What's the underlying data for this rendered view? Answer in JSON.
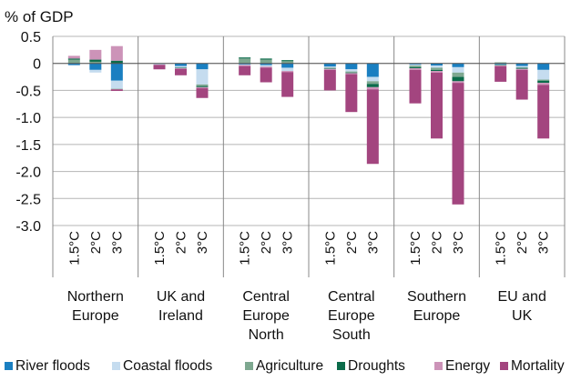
{
  "chart_data": {
    "type": "bar",
    "stacked": true,
    "ylabel": "% of GDP",
    "ylim": [
      -3.0,
      0.5
    ],
    "yticks": [
      0.5,
      0,
      -0.5,
      -1.0,
      -1.5,
      -2.0,
      -2.5,
      -3.0
    ],
    "ytick_labels": [
      "0.5",
      "0",
      "-0.5",
      "-1.0",
      "-1.5",
      "-2.0",
      "-2.5",
      "-3.0"
    ],
    "legend_position": "bottom",
    "groups": [
      {
        "label": [
          "Northern",
          "Europe"
        ]
      },
      {
        "label": [
          "UK and",
          "Ireland"
        ]
      },
      {
        "label": [
          "Central",
          "Europe",
          "North"
        ]
      },
      {
        "label": [
          "Central",
          "Europe",
          "South"
        ]
      },
      {
        "label": [
          "Southern",
          "Europe"
        ]
      },
      {
        "label": [
          "EU and",
          "UK"
        ]
      }
    ],
    "scenarios": [
      "1.5°C",
      "2°C",
      "3°C"
    ],
    "series": [
      {
        "name": "River floods",
        "color": "#1a7fc1",
        "values": [
          [
            -0.03,
            -0.12,
            -0.32
          ],
          [
            -0.01,
            -0.05,
            -0.11
          ],
          [
            -0.02,
            -0.03,
            -0.08
          ],
          [
            -0.06,
            -0.11,
            -0.25
          ],
          [
            -0.02,
            -0.04,
            -0.07
          ],
          [
            -0.02,
            -0.05,
            -0.12
          ]
        ]
      },
      {
        "name": "Coastal floods",
        "color": "#c5dcef",
        "values": [
          [
            -0.01,
            -0.05,
            -0.15
          ],
          [
            -0.01,
            -0.03,
            -0.28
          ],
          [
            -0.01,
            -0.03,
            -0.06
          ],
          [
            -0.02,
            -0.04,
            -0.08
          ],
          [
            -0.02,
            -0.04,
            -0.1
          ],
          [
            -0.01,
            -0.03,
            -0.18
          ]
        ]
      },
      {
        "name": "Agriculture",
        "color": "#7ea890",
        "values": [
          [
            0.07,
            0.03,
            -0.01
          ],
          [
            0,
            0,
            -0.03
          ],
          [
            0.09,
            0.07,
            0.04
          ],
          [
            -0.01,
            -0.02,
            -0.05
          ],
          [
            -0.03,
            -0.04,
            -0.08
          ],
          [
            0.02,
            0,
            -0.02
          ]
        ]
      },
      {
        "name": "Droughts",
        "color": "#0b6b4a",
        "values": [
          [
            0.02,
            0.04,
            0.05
          ],
          [
            0,
            -0.01,
            -0.02
          ],
          [
            0.02,
            0.02,
            0.02
          ],
          [
            -0.01,
            -0.01,
            -0.06
          ],
          [
            -0.02,
            -0.02,
            -0.08
          ],
          [
            -0.01,
            -0.02,
            -0.04
          ]
        ]
      },
      {
        "name": "Energy",
        "color": "#cc93b8",
        "values": [
          [
            0.05,
            0.18,
            0.27
          ],
          [
            -0.01,
            -0.01,
            -0.02
          ],
          [
            -0.02,
            -0.02,
            -0.02
          ],
          [
            -0.02,
            -0.02,
            -0.04
          ],
          [
            -0.03,
            -0.03,
            -0.03
          ],
          [
            -0.01,
            -0.02,
            -0.04
          ]
        ]
      },
      {
        "name": "Mortality",
        "color": "#a3457f",
        "values": [
          [
            0,
            0,
            -0.03
          ],
          [
            -0.08,
            -0.12,
            -0.18
          ],
          [
            -0.17,
            -0.27,
            -0.46
          ],
          [
            -0.38,
            -0.7,
            -1.38
          ],
          [
            -0.62,
            -1.22,
            -2.25
          ],
          [
            -0.29,
            -0.55,
            -0.99
          ]
        ]
      }
    ]
  }
}
